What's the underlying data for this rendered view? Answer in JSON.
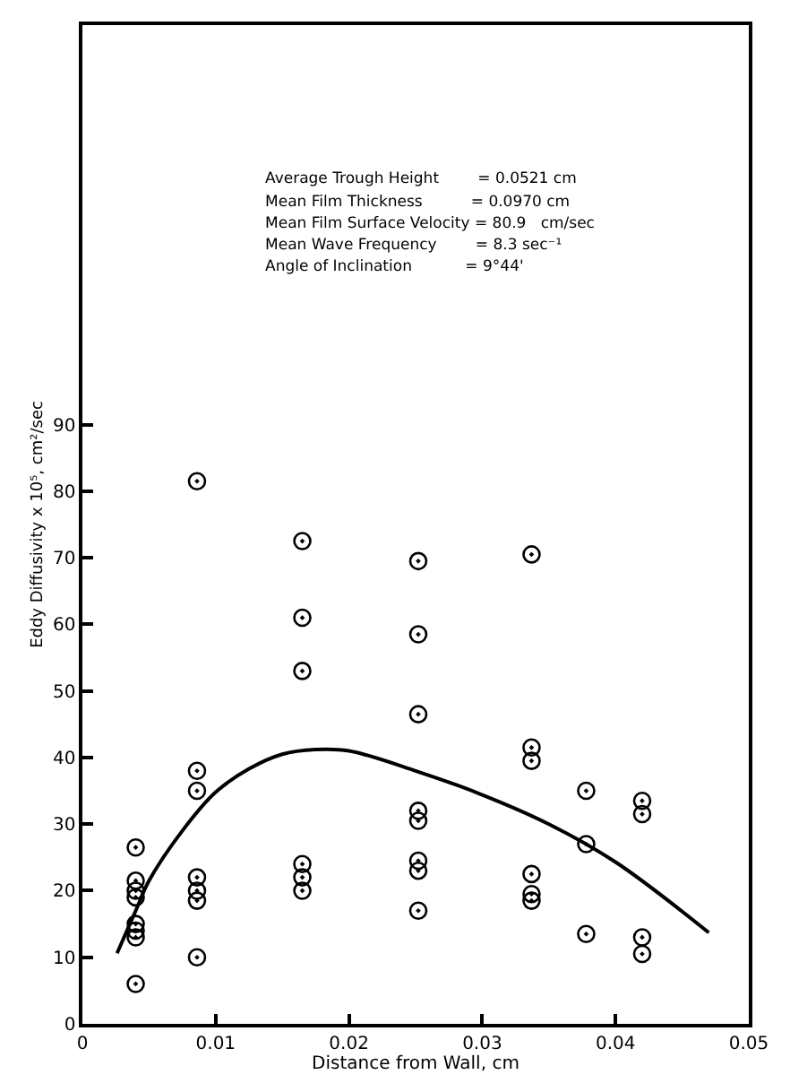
{
  "chart_data": {
    "type": "scatter",
    "xlabel": "Distance from Wall, cm",
    "ylabel": "Eddy Diffusivity x 10⁵, cm²/sec",
    "annotations": [
      "Average Trough Height        = 0.0521 cm",
      "Mean Film Thickness          = 0.0970 cm",
      "Mean Film Surface Velocity = 80.9   cm/sec",
      "Mean Wave Frequency        = 8.3 sec⁻¹",
      "Angle of Inclination           = 9°44'"
    ],
    "xlim": [
      0,
      0.05
    ],
    "xticks": [
      0,
      0.01,
      0.02,
      0.03,
      0.04,
      0.05
    ],
    "ylim": [
      0,
      150
    ],
    "yticks": [
      0,
      10,
      20,
      30,
      40,
      50,
      60,
      70,
      80,
      90
    ],
    "series": [
      {
        "marker": "circle",
        "color": "#000000",
        "x": [
          0.004,
          0.004,
          0.004,
          0.004,
          0.004,
          0.004,
          0.004,
          0.004,
          0.0086,
          0.0086,
          0.0086,
          0.0086,
          0.0086,
          0.0086,
          0.0086,
          0.0165,
          0.0165,
          0.0165,
          0.0165,
          0.0165,
          0.0165,
          0.0252,
          0.0252,
          0.0252,
          0.0252,
          0.0252,
          0.0252,
          0.0252,
          0.0252,
          0.0337,
          0.0337,
          0.0337,
          0.0337,
          0.0337,
          0.0337,
          0.0378,
          0.0378,
          0.0378,
          0.042,
          0.042,
          0.042,
          0.042
        ],
        "values": [
          26.5,
          21.5,
          20,
          19,
          15,
          14,
          13,
          6,
          81.5,
          38,
          35,
          22,
          20,
          18.5,
          10,
          72.5,
          61,
          53,
          24,
          22,
          20,
          69.5,
          58.5,
          46.5,
          32,
          30.5,
          24.5,
          23,
          17,
          70.5,
          41.5,
          39.5,
          22.5,
          19.5,
          18.5,
          35,
          27,
          13.5,
          33.5,
          31.5,
          13,
          10.5
        ]
      },
      {
        "type": "line",
        "color": "#000000",
        "line_style": "solid",
        "x": [
          0.0026,
          0.004,
          0.005,
          0.0075,
          0.01,
          0.0125,
          0.015,
          0.0175,
          0.02,
          0.025,
          0.03,
          0.035,
          0.04,
          0.047
        ],
        "values": [
          10.6,
          17,
          21.5,
          29,
          34.8,
          38.3,
          40.5,
          41.2,
          41,
          38,
          34.4,
          30,
          24.3,
          13.7
        ]
      }
    ]
  }
}
